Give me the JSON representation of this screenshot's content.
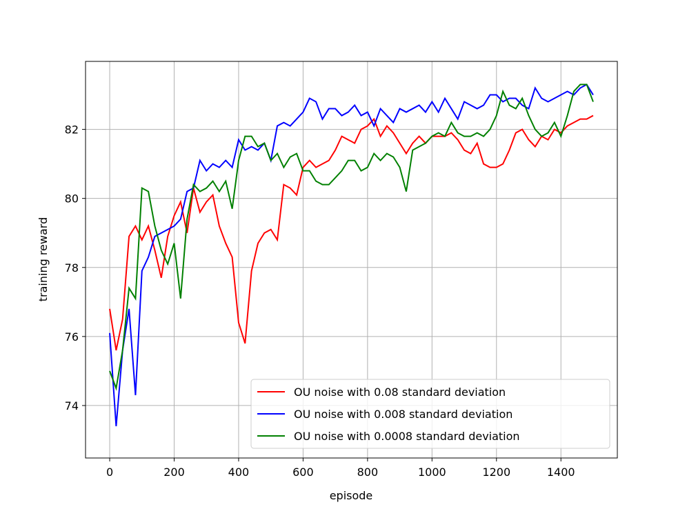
{
  "chart_data": {
    "type": "line",
    "x_label": "episode",
    "y_label": "training reward",
    "x": [
      0,
      20,
      40,
      60,
      80,
      100,
      120,
      140,
      160,
      180,
      200,
      220,
      240,
      260,
      280,
      300,
      320,
      340,
      360,
      380,
      400,
      420,
      440,
      460,
      480,
      500,
      520,
      540,
      560,
      580,
      600,
      620,
      640,
      660,
      680,
      700,
      720,
      740,
      760,
      780,
      800,
      820,
      840,
      860,
      880,
      900,
      920,
      940,
      960,
      980,
      1000,
      1020,
      1040,
      1060,
      1080,
      1100,
      1120,
      1140,
      1160,
      1180,
      1200,
      1220,
      1240,
      1260,
      1280,
      1300,
      1320,
      1340,
      1360,
      1380,
      1400,
      1420,
      1440,
      1460,
      1480,
      1500
    ],
    "series": [
      {
        "name": "OU noise with 0.08 standard deviation",
        "color": "#ff0000",
        "values": [
          76.8,
          75.6,
          76.5,
          78.9,
          79.2,
          78.8,
          79.2,
          78.5,
          77.7,
          78.9,
          79.5,
          79.9,
          79.0,
          80.3,
          79.6,
          79.9,
          80.1,
          79.2,
          78.7,
          78.3,
          76.4,
          75.8,
          77.9,
          78.7,
          79.0,
          79.1,
          78.8,
          80.4,
          80.3,
          80.1,
          80.9,
          81.1,
          80.9,
          81.0,
          81.1,
          81.4,
          81.8,
          81.7,
          81.6,
          82.0,
          82.1,
          82.3,
          81.8,
          82.1,
          81.9,
          81.6,
          81.3,
          81.6,
          81.8,
          81.6,
          81.8,
          81.8,
          81.8,
          81.9,
          81.7,
          81.4,
          81.3,
          81.6,
          81.0,
          80.9,
          80.9,
          81.0,
          81.4,
          81.9,
          82.0,
          81.7,
          81.5,
          81.8,
          81.7,
          82.0,
          81.9,
          82.1,
          82.2,
          82.3,
          82.3,
          82.4
        ]
      },
      {
        "name": "OU noise with 0.008 standard deviation",
        "color": "#0000ff",
        "values": [
          76.1,
          73.4,
          75.6,
          76.8,
          74.3,
          77.9,
          78.3,
          78.9,
          79.0,
          79.1,
          79.2,
          79.4,
          80.2,
          80.3,
          81.1,
          80.8,
          81.0,
          80.9,
          81.1,
          80.9,
          81.7,
          81.4,
          81.5,
          81.4,
          81.6,
          81.1,
          82.1,
          82.2,
          82.1,
          82.3,
          82.5,
          82.9,
          82.8,
          82.3,
          82.6,
          82.6,
          82.4,
          82.5,
          82.7,
          82.4,
          82.5,
          82.1,
          82.6,
          82.4,
          82.2,
          82.6,
          82.5,
          82.6,
          82.7,
          82.5,
          82.8,
          82.5,
          82.9,
          82.6,
          82.3,
          82.8,
          82.7,
          82.6,
          82.7,
          83.0,
          83.0,
          82.8,
          82.9,
          82.9,
          82.7,
          82.6,
          83.2,
          82.9,
          82.8,
          82.9,
          83.0,
          83.1,
          83.0,
          83.2,
          83.3,
          83.0
        ]
      },
      {
        "name": "OU noise with 0.0008 standard deviation",
        "color": "#008000",
        "values": [
          75.0,
          74.5,
          75.6,
          77.4,
          77.1,
          80.3,
          80.2,
          79.2,
          78.5,
          78.1,
          78.7,
          77.1,
          79.4,
          80.4,
          80.2,
          80.3,
          80.5,
          80.2,
          80.5,
          79.7,
          81.1,
          81.8,
          81.8,
          81.5,
          81.6,
          81.1,
          81.3,
          80.9,
          81.2,
          81.3,
          80.8,
          80.8,
          80.5,
          80.4,
          80.4,
          80.6,
          80.8,
          81.1,
          81.1,
          80.8,
          80.9,
          81.3,
          81.1,
          81.3,
          81.2,
          80.9,
          80.2,
          81.4,
          81.5,
          81.6,
          81.8,
          81.9,
          81.8,
          82.2,
          81.9,
          81.8,
          81.8,
          81.9,
          81.8,
          82.0,
          82.4,
          83.1,
          82.7,
          82.6,
          82.9,
          82.4,
          82.0,
          81.8,
          81.9,
          82.2,
          81.8,
          82.4,
          83.1,
          83.3,
          83.3,
          82.8
        ]
      }
    ],
    "xlim": [
      -75,
      1575
    ],
    "ylim": [
      72.48,
      83.97
    ],
    "xticks": [
      0,
      200,
      400,
      600,
      800,
      1000,
      1200,
      1400
    ],
    "yticks": [
      74,
      76,
      78,
      80,
      82
    ],
    "grid": true,
    "legend": "lower right"
  }
}
